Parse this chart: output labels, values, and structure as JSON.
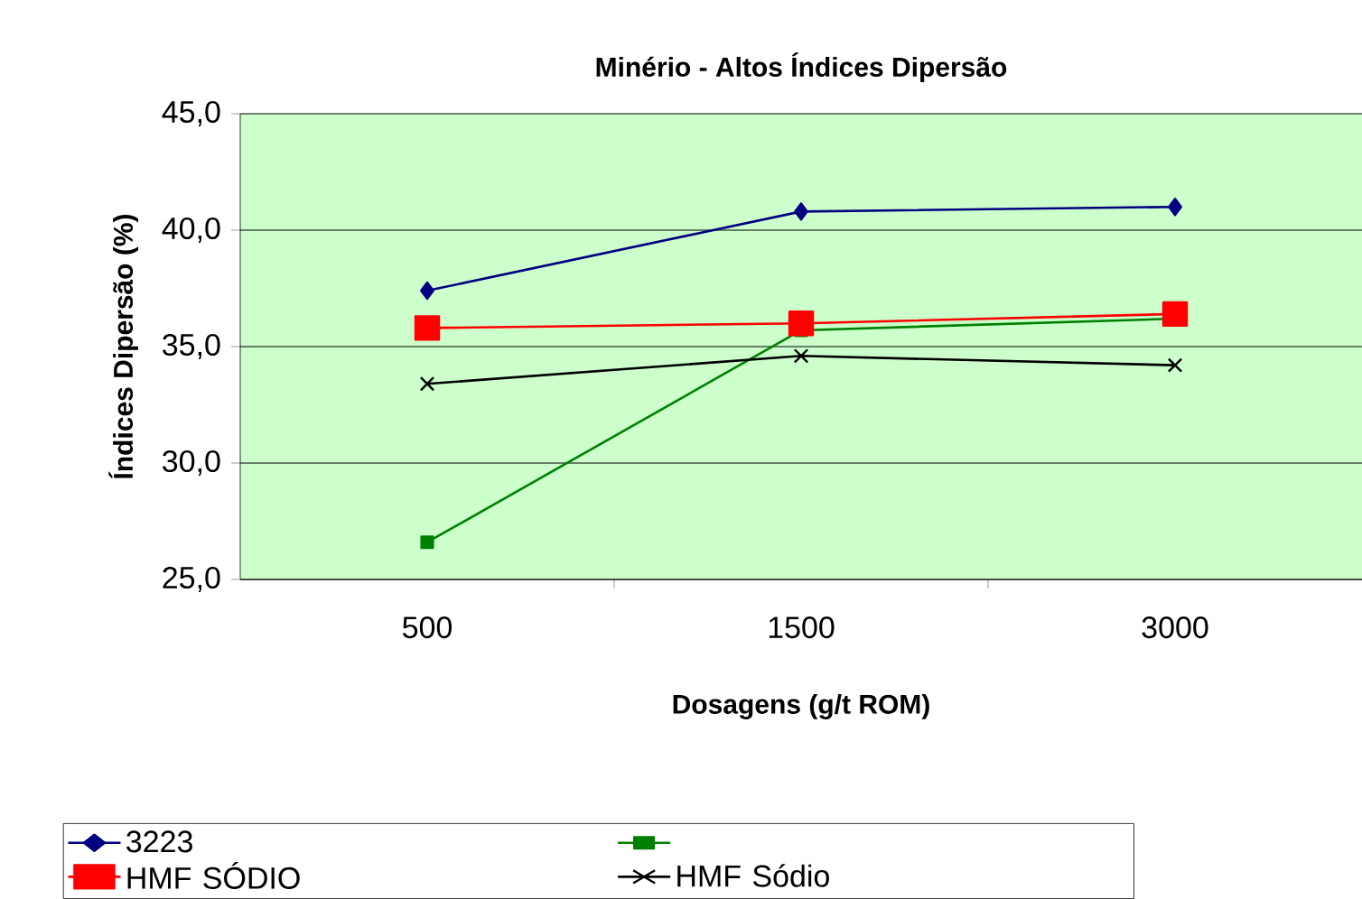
{
  "chart_data": {
    "type": "line",
    "title": "Minério - Altos Índices Dipersão",
    "xlabel": "Dosagens (g/t ROM)",
    "ylabel": "Índices Dipersão (%)",
    "categories": [
      "500",
      "1500",
      "3000"
    ],
    "ylim": [
      25,
      45
    ],
    "yticks": [
      {
        "value": 25,
        "label": "25,0"
      },
      {
        "value": 30,
        "label": "30,0"
      },
      {
        "value": 35,
        "label": "35,0"
      },
      {
        "value": 40,
        "label": "40,0"
      },
      {
        "value": 45,
        "label": "45,0"
      }
    ],
    "grid": "y",
    "legend": "bottom",
    "line_style": "solid",
    "series": [
      {
        "name": "3223",
        "color": "#000080",
        "marker": "diamond",
        "values": [
          37.4,
          40.8,
          41.0
        ]
      },
      {
        "color": "#008000",
        "marker": "square",
        "values": [
          26.6,
          35.7,
          36.2
        ]
      },
      {
        "name": "HMF SÓDIO",
        "color": "#ff0000",
        "marker": "square",
        "values": [
          35.8,
          36.0,
          36.4
        ]
      },
      {
        "name": "HMF Sódio",
        "color": "#000000",
        "marker": "cross",
        "values": [
          33.4,
          34.6,
          34.2
        ]
      }
    ]
  }
}
